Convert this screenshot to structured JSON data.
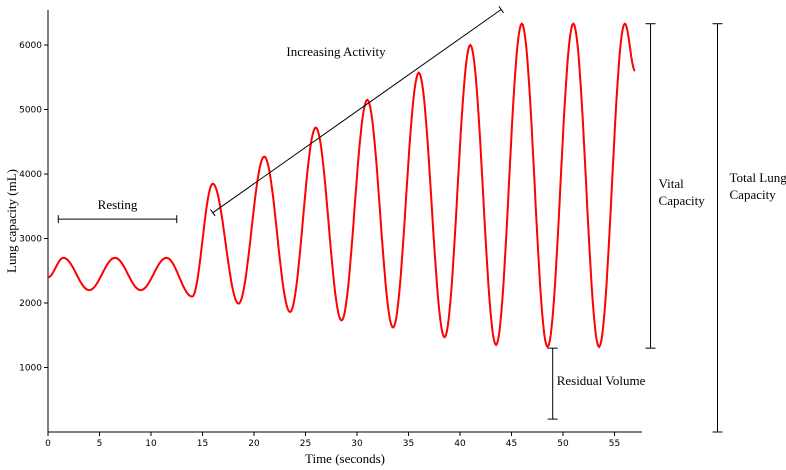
{
  "chart_data": {
    "type": "line",
    "title": "",
    "xlabel": "Time (seconds)",
    "ylabel": "Lung capacity (mL)",
    "xlim": [
      0,
      57.5
    ],
    "ylim": [
      0,
      6500
    ],
    "grid": false,
    "x_ticks": [
      "0",
      "5",
      "10",
      "15",
      "20",
      "25",
      "30",
      "35",
      "40",
      "45",
      "50",
      "55"
    ],
    "y_ticks": [
      "1000",
      "2000",
      "3000",
      "4000",
      "5000",
      "6000"
    ],
    "series": [
      {
        "color": "#ff0000",
        "peaks": [
          {
            "t": 1.5,
            "v": 2700
          },
          {
            "t": 6.5,
            "v": 2700
          },
          {
            "t": 11.5,
            "v": 2700
          },
          {
            "t": 16.0,
            "v": 3850
          },
          {
            "t": 21.0,
            "v": 4270
          },
          {
            "t": 26.0,
            "v": 4720
          },
          {
            "t": 31.0,
            "v": 5150
          },
          {
            "t": 36.0,
            "v": 5570
          },
          {
            "t": 41.0,
            "v": 6000
          },
          {
            "t": 46.0,
            "v": 6330
          },
          {
            "t": 51.0,
            "v": 6330
          },
          {
            "t": 56.0,
            "v": 6330
          }
        ],
        "troughs": [
          {
            "t": 0.0,
            "v": 2400
          },
          {
            "t": 4.0,
            "v": 2200
          },
          {
            "t": 9.0,
            "v": 2200
          },
          {
            "t": 14.0,
            "v": 2100
          },
          {
            "t": 18.5,
            "v": 1990
          },
          {
            "t": 23.5,
            "v": 1860
          },
          {
            "t": 28.5,
            "v": 1730
          },
          {
            "t": 33.5,
            "v": 1620
          },
          {
            "t": 38.5,
            "v": 1470
          },
          {
            "t": 43.5,
            "v": 1350
          },
          {
            "t": 48.5,
            "v": 1320
          },
          {
            "t": 53.5,
            "v": 1320
          },
          {
            "t": 57.0,
            "v": 5600
          }
        ]
      }
    ],
    "annotations": {
      "resting": {
        "label": "Resting",
        "x_start": 1,
        "x_end": 12.5,
        "y": 3300
      },
      "increasing": {
        "label": "Increasing Activity",
        "start": [
          16,
          3400
        ],
        "end": [
          44,
          6550
        ]
      },
      "vital_capacity": {
        "label_line1": "Vital",
        "label_line2": "Capacity",
        "x": 58.5,
        "y_low": 1300,
        "y_high": 6330
      },
      "residual_volume": {
        "label": "Residual Volume",
        "x": 49,
        "y_low": 200,
        "y_high": 1300
      },
      "total_lung_capacity": {
        "label_line1": "Total Lung",
        "label_line2": "Capacity",
        "x": 65,
        "y_low": 0,
        "y_high": 6330
      }
    }
  }
}
